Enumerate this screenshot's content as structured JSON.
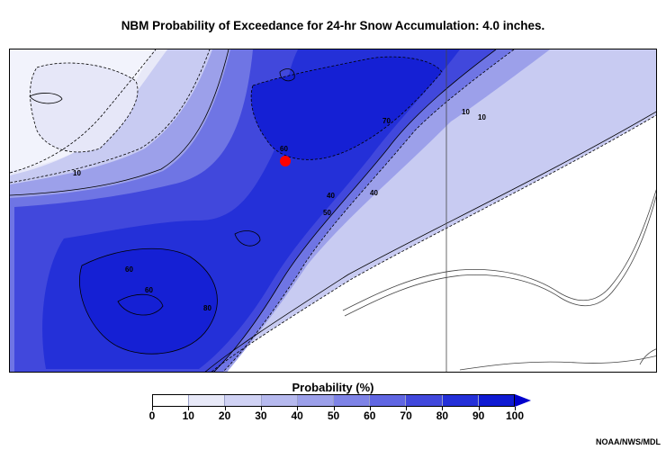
{
  "title": "NBM Probability of Exceedance for 24-hr Snow Accumulation: 4.0 inches.",
  "map": {
    "contour_labels": [
      "10",
      "40",
      "50",
      "70",
      "10",
      "60",
      "40",
      "60",
      "10",
      "80",
      "60"
    ],
    "marker_color": "#ff0000"
  },
  "legend": {
    "title": "Probability (%)",
    "ticks": [
      "0",
      "10",
      "20",
      "30",
      "40",
      "50",
      "60",
      "70",
      "80",
      "90",
      "100"
    ],
    "colors": [
      "#ffffff",
      "#e8e9f8",
      "#d0d2f4",
      "#b6b9ee",
      "#9ca0ea",
      "#7e83e6",
      "#6066e2",
      "#4148dc",
      "#2430d8",
      "#0f1ad2"
    ],
    "arrow_color": "#0000cc"
  },
  "credit": "NOAA/NWS/MDL"
}
